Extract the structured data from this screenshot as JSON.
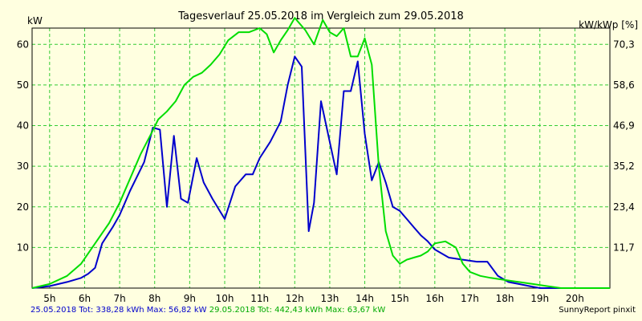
{
  "chart_data": {
    "type": "line",
    "title": "Tagesverlauf 25.05.2018 im Vergleich zum 29.05.2018",
    "ylabel_left": "kW",
    "ylabel_right": "kW/kWp [%]",
    "xlim": [
      4.5,
      21.0
    ],
    "ylim": [
      0,
      64
    ],
    "x_ticks": [
      5,
      6,
      7,
      8,
      9,
      10,
      11,
      12,
      13,
      14,
      15,
      16,
      17,
      18,
      19,
      20
    ],
    "x_tick_labels": [
      "5h",
      "6h",
      "7h",
      "8h",
      "9h",
      "10h",
      "11h",
      "12h",
      "13h",
      "14h",
      "15h",
      "16h",
      "17h",
      "18h",
      "19h",
      "20h"
    ],
    "y_ticks_left": [
      10,
      20,
      30,
      40,
      50,
      60
    ],
    "y_tick_labels_left": [
      "10",
      "20",
      "30",
      "40",
      "50",
      "60"
    ],
    "y_ticks_right": [
      11.7,
      23.4,
      35.2,
      46.9,
      58.6,
      70.3
    ],
    "y_tick_labels_right": [
      "11,7",
      "23,4",
      "35,2",
      "46,9",
      "58,6",
      "70,3"
    ],
    "right_axis_max_percent": 75,
    "grid": true,
    "colors": {
      "background": "#ffffe0",
      "plot_background": "#ffffe0",
      "grid": "#33cc33",
      "series1": "#0000cc",
      "series2": "#00dd00"
    },
    "series": [
      {
        "name": "25.05.2018",
        "color": "#0000cc",
        "x": [
          4.5,
          5.0,
          5.5,
          5.9,
          6.1,
          6.3,
          6.5,
          6.8,
          7.0,
          7.3,
          7.7,
          7.95,
          8.15,
          8.35,
          8.55,
          8.75,
          8.95,
          9.2,
          9.4,
          9.65,
          10.0,
          10.3,
          10.6,
          10.8,
          11.0,
          11.3,
          11.6,
          11.8,
          12.0,
          12.2,
          12.4,
          12.55,
          12.75,
          12.95,
          13.2,
          13.4,
          13.6,
          13.8,
          14.0,
          14.2,
          14.4,
          14.6,
          14.8,
          15.0,
          15.2,
          15.4,
          15.6,
          15.8,
          16.0,
          16.4,
          16.8,
          17.2,
          17.5,
          17.8,
          18.1,
          18.4,
          18.7,
          19.0,
          19.3,
          19.6,
          20.0,
          20.5,
          21.0
        ],
        "y": [
          0,
          0.5,
          1.5,
          2.5,
          3.5,
          5,
          11,
          15,
          18,
          24,
          31,
          39.5,
          39,
          20,
          37.5,
          22,
          21,
          32,
          26,
          22,
          17,
          25,
          28,
          28,
          32,
          36,
          41,
          50,
          57,
          54.5,
          14,
          21,
          46,
          38,
          28,
          48.5,
          48.5,
          55.8,
          38,
          26.5,
          31,
          26,
          20,
          19,
          17,
          15,
          13,
          11.5,
          9.5,
          7.5,
          7,
          6.5,
          6.5,
          3,
          1.5,
          1,
          0.5,
          0,
          0,
          0,
          0,
          0,
          0
        ]
      },
      {
        "name": "29.05.2018",
        "color": "#00dd00",
        "x": [
          4.5,
          5.0,
          5.5,
          5.9,
          6.3,
          6.7,
          7.0,
          7.3,
          7.6,
          7.9,
          8.1,
          8.35,
          8.6,
          8.85,
          9.1,
          9.35,
          9.6,
          9.85,
          10.1,
          10.4,
          10.7,
          11.0,
          11.2,
          11.4,
          11.6,
          11.8,
          12.0,
          12.3,
          12.55,
          12.8,
          13.0,
          13.2,
          13.4,
          13.6,
          13.8,
          14.0,
          14.2,
          14.4,
          14.6,
          14.8,
          15.0,
          15.2,
          15.4,
          15.6,
          15.8,
          16.0,
          16.3,
          16.6,
          16.8,
          17.0,
          17.3,
          17.6,
          18.0,
          18.4,
          18.8,
          19.2,
          19.6,
          20.0,
          20.5,
          21.0
        ],
        "y": [
          0,
          1,
          3,
          6,
          11,
          16,
          21,
          27,
          33,
          38,
          41.5,
          43.5,
          46,
          50,
          52,
          53,
          55,
          57.5,
          61,
          63,
          63,
          64,
          62.5,
          58,
          61,
          63.5,
          66.5,
          63.5,
          60,
          66,
          63,
          62,
          64,
          57,
          57,
          61.5,
          55,
          30,
          14,
          8,
          6,
          7,
          7.5,
          8,
          9,
          11,
          11.5,
          10,
          6,
          4,
          3,
          2.5,
          2,
          1.5,
          1,
          0.5,
          0,
          0,
          0,
          0
        ]
      }
    ]
  },
  "footer": {
    "series1_summary": "25.05.2018 Tot: 338,28 kWh Max: 56,82 kW",
    "series2_summary": "29.05.2018 Tot: 442,43 kWh Max: 63,67 kW",
    "credit": "SunnyReport pinxit"
  }
}
